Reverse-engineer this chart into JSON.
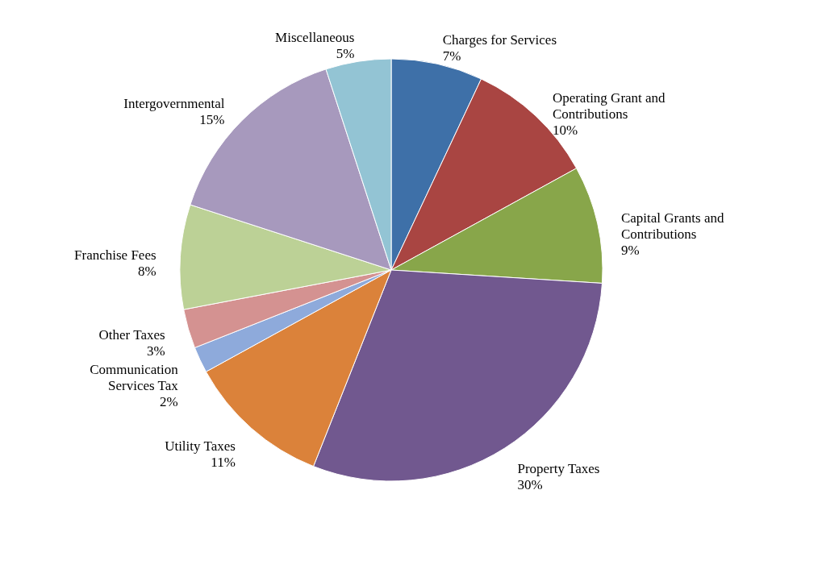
{
  "chart_data": {
    "type": "pie",
    "categories": [
      "Charges for Services",
      "Operating Grant and Contributions",
      "Capital Grants and Contributions",
      "Property Taxes",
      "Utility Taxes",
      "Communication Services Tax",
      "Other Taxes",
      "Franchise Fees",
      "Intergovernmental",
      "Miscellaneous"
    ],
    "values": [
      7,
      10,
      9,
      30,
      11,
      2,
      3,
      8,
      15,
      5
    ],
    "value_labels": [
      "7%",
      "10%",
      "9%",
      "30%",
      "11%",
      "2%",
      "3%",
      "8%",
      "15%",
      "5%"
    ],
    "colors": [
      "#3e70a8",
      "#a94542",
      "#88a64a",
      "#71588f",
      "#db823a",
      "#8eaadb",
      "#d49291",
      "#bcd196",
      "#a799bd",
      "#93c4d4"
    ],
    "legend": false
  }
}
